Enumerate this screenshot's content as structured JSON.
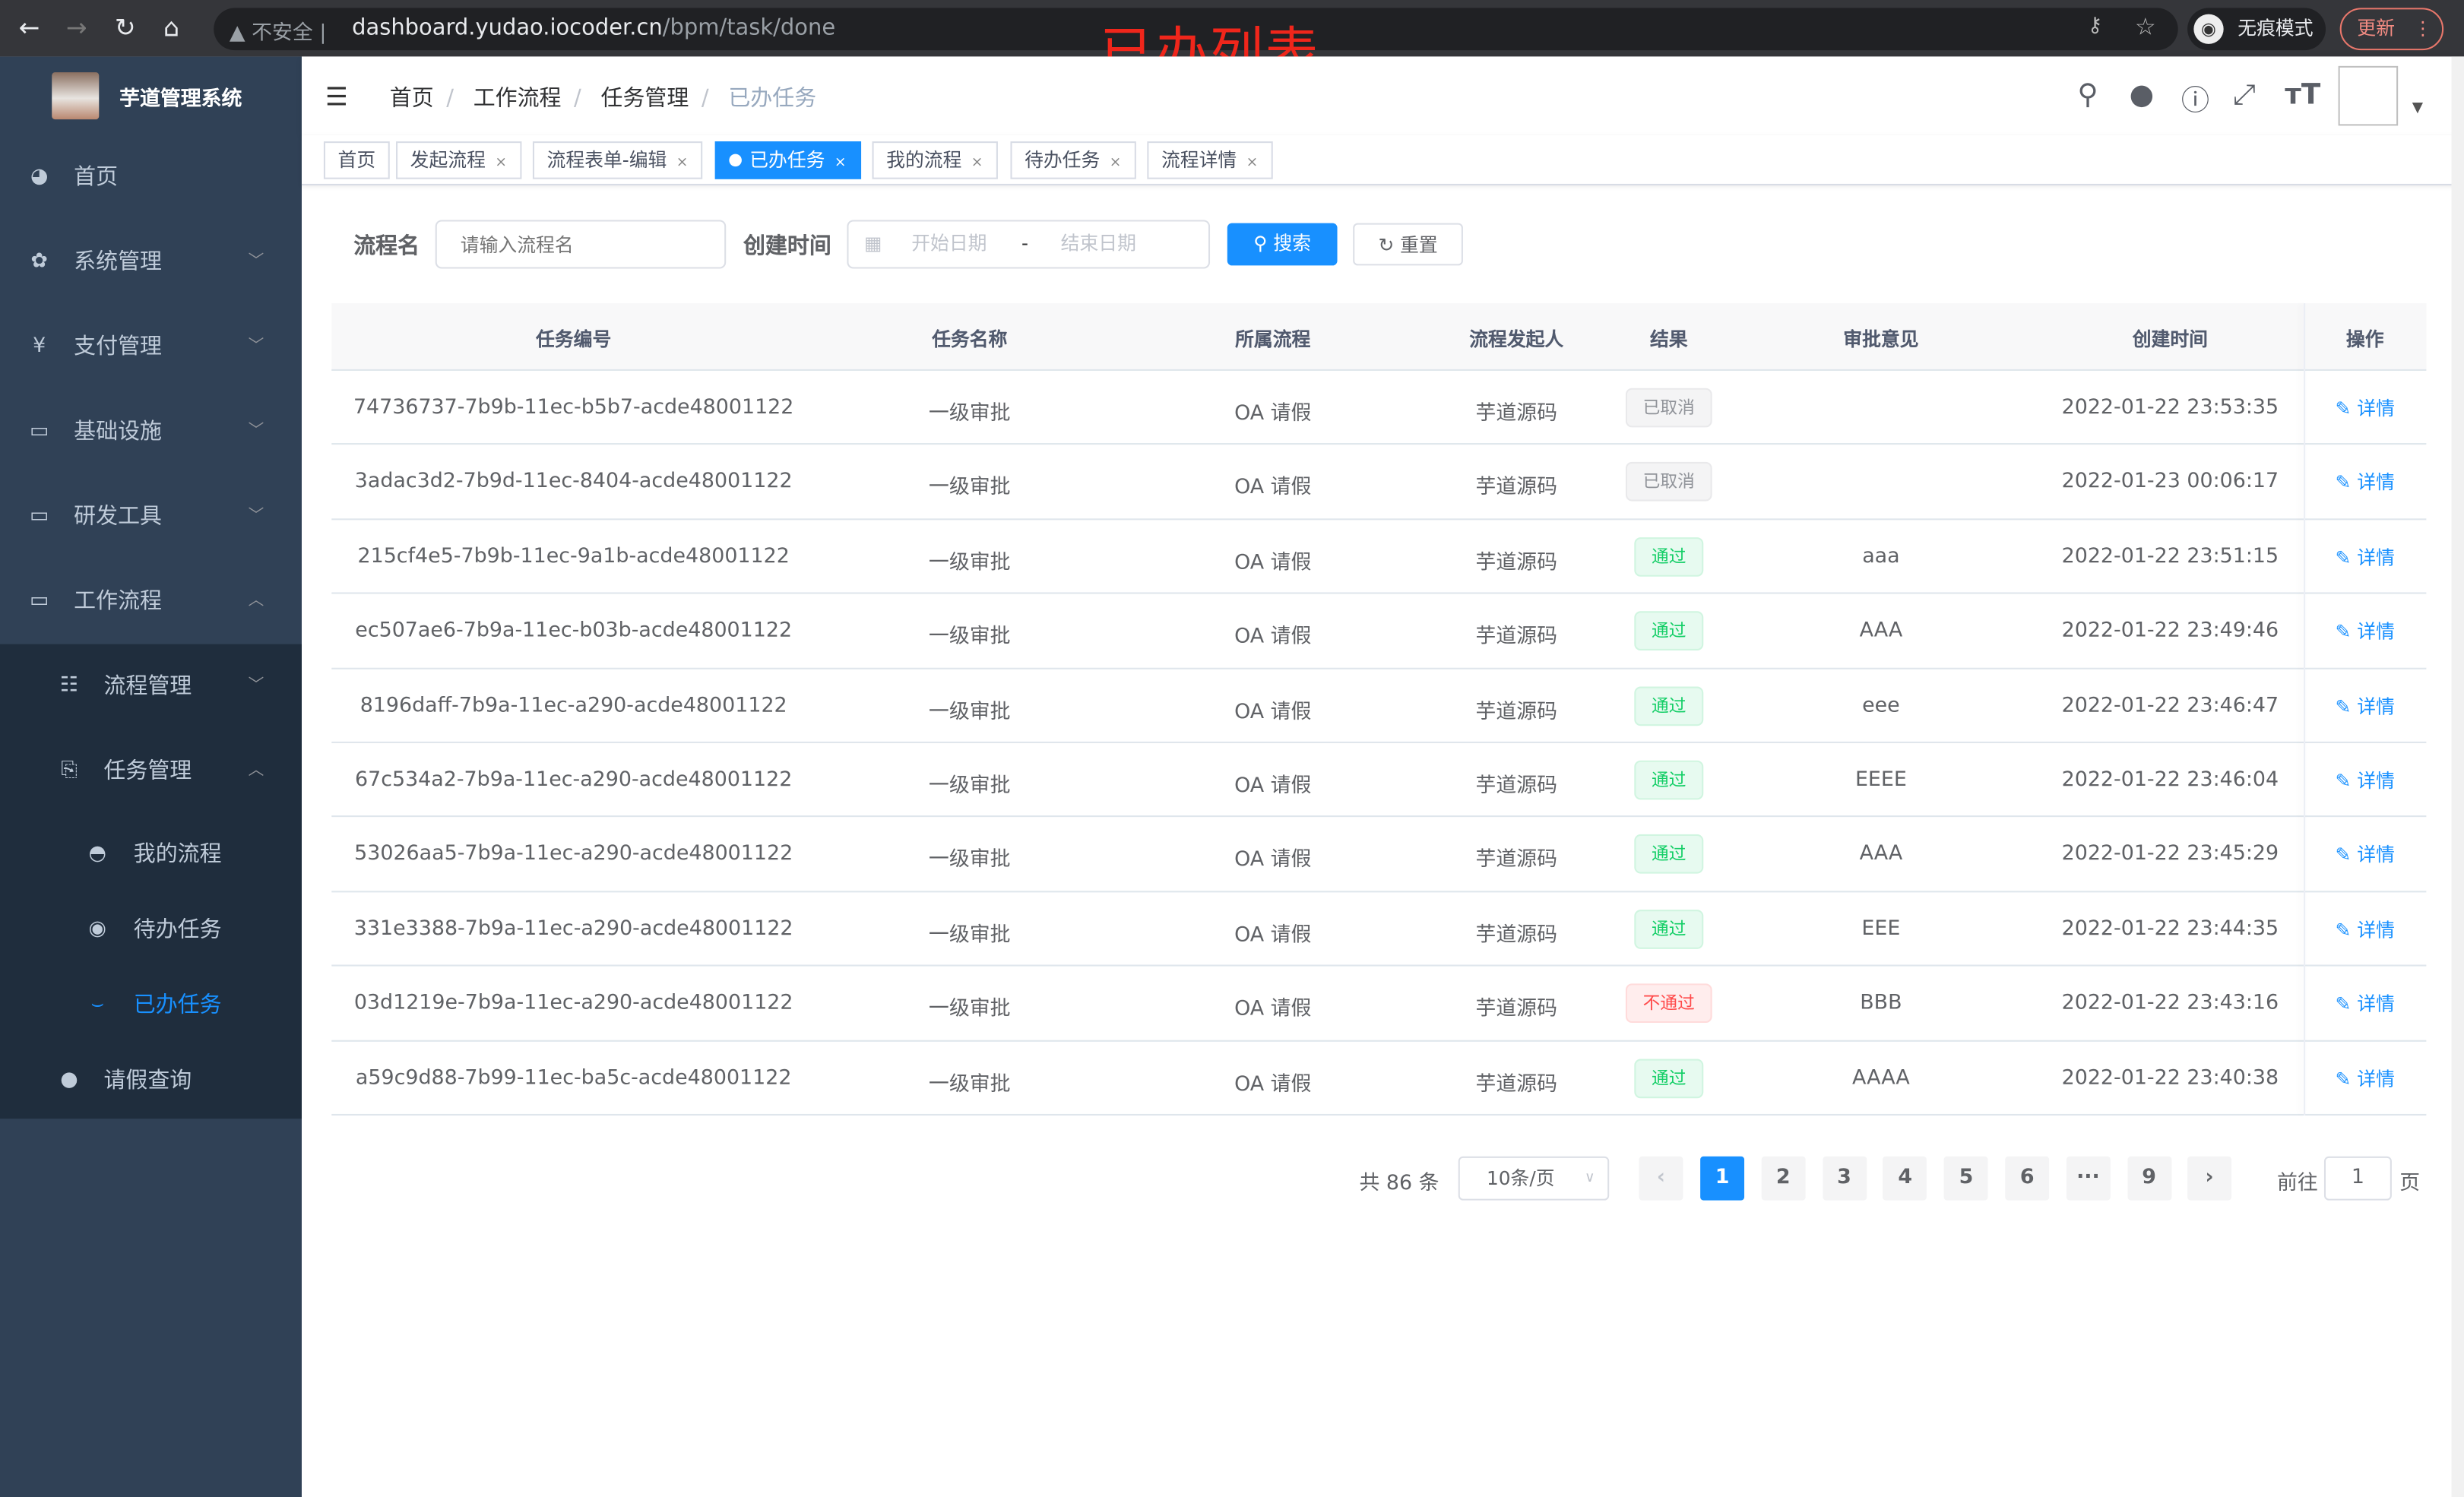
{
  "browser": {
    "insecure": "不安全",
    "url_host": "dashboard.yudao.iocoder.cn",
    "url_path": "/bpm/task/done",
    "incognito": "无痕模式",
    "update": "更新"
  },
  "annotation": "已办列表",
  "sidebar": {
    "brand": "芋道管理系统",
    "items": [
      {
        "label": "首页",
        "icon": "dashboard-icon"
      },
      {
        "label": "系统管理",
        "icon": "gear-icon"
      },
      {
        "label": "支付管理",
        "icon": "yen-icon"
      },
      {
        "label": "基础设施",
        "icon": "monitor-icon"
      },
      {
        "label": "研发工具",
        "icon": "toolbox-icon"
      },
      {
        "label": "工作流程",
        "icon": "toolbox-icon"
      }
    ],
    "sub": [
      {
        "label": "流程管理",
        "icon": "list-icon"
      },
      {
        "label": "任务管理",
        "icon": "task-icon"
      }
    ],
    "subsub": [
      {
        "label": "我的流程",
        "icon": "chat-icon"
      },
      {
        "label": "待办任务",
        "icon": "eye-icon"
      },
      {
        "label": "已办任务",
        "icon": "eye-closed-icon",
        "active": true
      }
    ],
    "last": {
      "label": "请假查询",
      "icon": "user-icon"
    }
  },
  "breadcrumb": [
    "首页",
    "工作流程",
    "任务管理",
    "已办任务"
  ],
  "tags": [
    {
      "label": "首页"
    },
    {
      "label": "发起流程"
    },
    {
      "label": "流程表单-编辑"
    },
    {
      "label": "已办任务",
      "active": true
    },
    {
      "label": "我的流程"
    },
    {
      "label": "待办任务"
    },
    {
      "label": "流程详情"
    }
  ],
  "filters": {
    "name_label": "流程名",
    "name_placeholder": "请输入流程名",
    "time_label": "创建时间",
    "start_placeholder": "开始日期",
    "sep": "-",
    "end_placeholder": "结束日期",
    "search": "搜索",
    "reset": "重置"
  },
  "table": {
    "columns": [
      "任务编号",
      "任务名称",
      "所属流程",
      "流程发起人",
      "结果",
      "审批意见",
      "创建时间",
      "操作"
    ],
    "action": "详情",
    "rows": [
      [
        "74736737-7b9b-11ec-b5b7-acde48001122",
        "一级审批",
        "OA 请假",
        "芋道源码",
        "已取消",
        "",
        "2022-01-22 23:53:35"
      ],
      [
        "3adac3d2-7b9d-11ec-8404-acde48001122",
        "一级审批",
        "OA 请假",
        "芋道源码",
        "已取消",
        "",
        "2022-01-23 00:06:17"
      ],
      [
        "215cf4e5-7b9b-11ec-9a1b-acde48001122",
        "一级审批",
        "OA 请假",
        "芋道源码",
        "通过",
        "aaa",
        "2022-01-22 23:51:15"
      ],
      [
        "ec507ae6-7b9a-11ec-b03b-acde48001122",
        "一级审批",
        "OA 请假",
        "芋道源码",
        "通过",
        "AAA",
        "2022-01-22 23:49:46"
      ],
      [
        "8196daff-7b9a-11ec-a290-acde48001122",
        "一级审批",
        "OA 请假",
        "芋道源码",
        "通过",
        "eee",
        "2022-01-22 23:46:47"
      ],
      [
        "67c534a2-7b9a-11ec-a290-acde48001122",
        "一级审批",
        "OA 请假",
        "芋道源码",
        "通过",
        "EEEE",
        "2022-01-22 23:46:04"
      ],
      [
        "53026aa5-7b9a-11ec-a290-acde48001122",
        "一级审批",
        "OA 请假",
        "芋道源码",
        "通过",
        "AAA",
        "2022-01-22 23:45:29"
      ],
      [
        "331e3388-7b9a-11ec-a290-acde48001122",
        "一级审批",
        "OA 请假",
        "芋道源码",
        "通过",
        "EEE",
        "2022-01-22 23:44:35"
      ],
      [
        "03d1219e-7b9a-11ec-a290-acde48001122",
        "一级审批",
        "OA 请假",
        "芋道源码",
        "不通过",
        "BBB",
        "2022-01-22 23:43:16"
      ],
      [
        "a59c9d88-7b99-11ec-ba5c-acde48001122",
        "一级审批",
        "OA 请假",
        "芋道源码",
        "通过",
        "AAAA",
        "2022-01-22 23:40:38"
      ]
    ]
  },
  "pagination": {
    "total": "共 86 条",
    "page_size": "10条/页",
    "pages": [
      "1",
      "2",
      "3",
      "4",
      "5",
      "6",
      "···",
      "9"
    ],
    "current": "1",
    "goto_label": "前往",
    "goto_value": "1",
    "goto_suffix": "页"
  },
  "colors": {
    "accent": "#1890ff",
    "sidebar": "#304156",
    "submenu": "#1f2d3d",
    "annotation": "#f0261b"
  }
}
